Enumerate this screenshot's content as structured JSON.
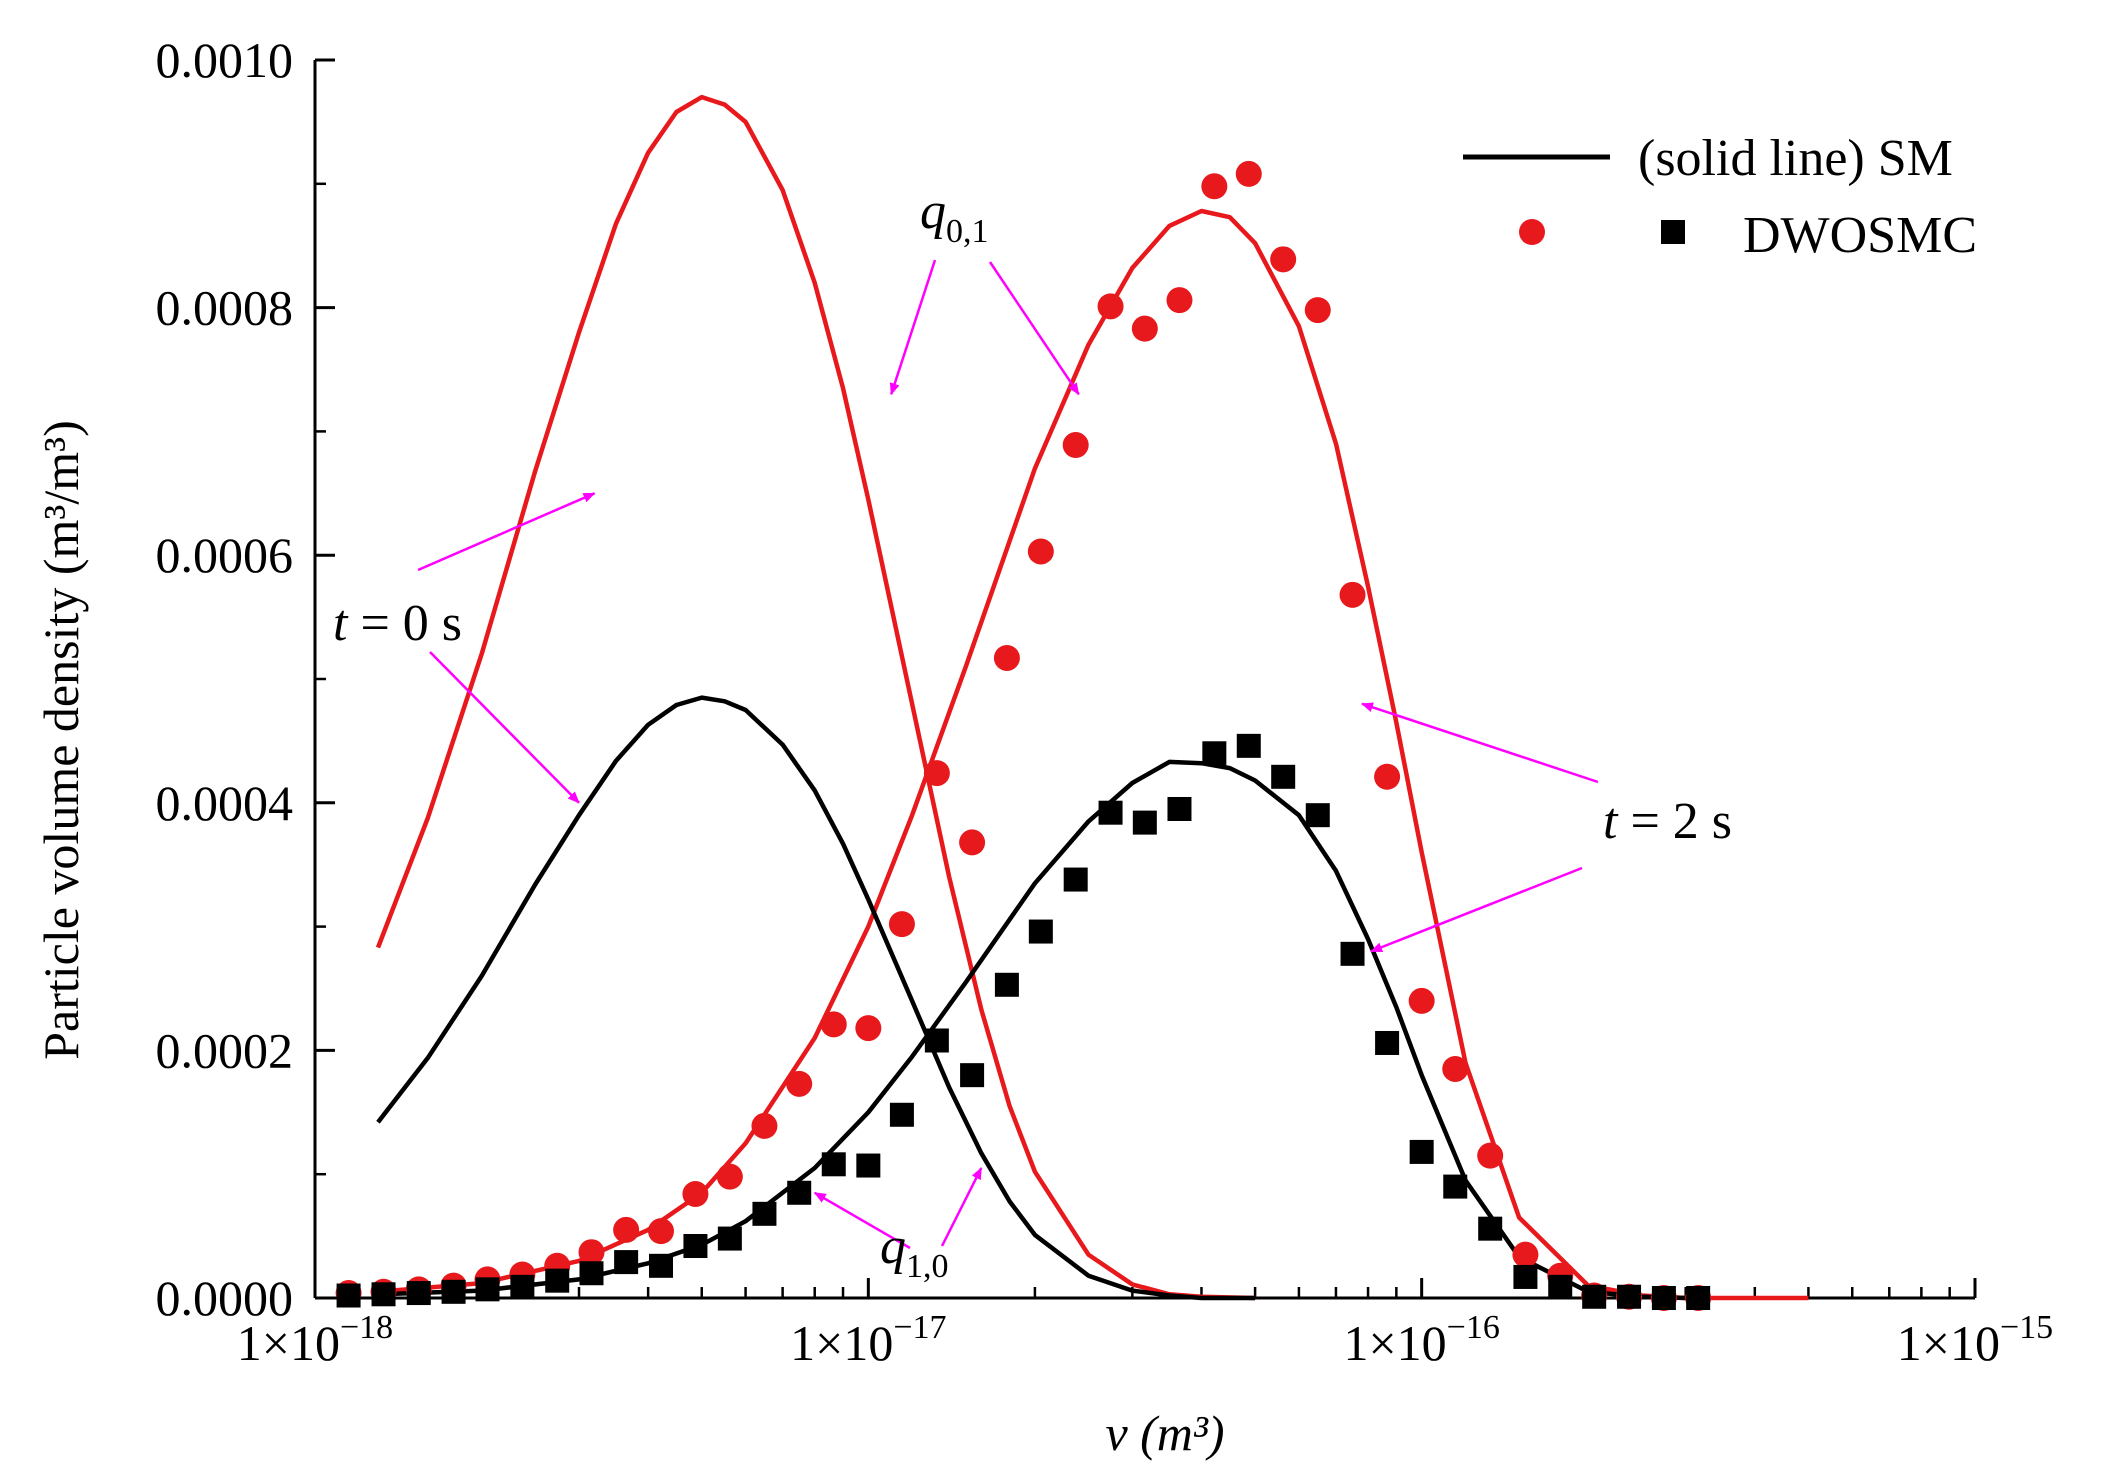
{
  "chart_data": {
    "type": "line",
    "x_scale": "log",
    "xlim": [
      1e-18,
      1e-15
    ],
    "ylim": [
      0,
      0.001
    ],
    "ylabel": "Particle volume density (m³/m³)",
    "xlabel": "v (m³)",
    "x_ticks": [
      1e-18,
      1e-17,
      1e-16,
      1e-15
    ],
    "x_tick_labels": [
      {
        "mantissa": "1×10",
        "exponent": "−18"
      },
      {
        "mantissa": "1×10",
        "exponent": "−17"
      },
      {
        "mantissa": "1×10",
        "exponent": "−16"
      },
      {
        "mantissa": "1×10",
        "exponent": "−15"
      }
    ],
    "y_ticks": [
      0,
      0.0002,
      0.0004,
      0.0006,
      0.0008,
      0.001
    ],
    "y_tick_labels": [
      "0.0000",
      "0.0002",
      "0.0004",
      "0.0006",
      "0.0008",
      "0.0010"
    ],
    "series": [
      {
        "name": "q0,1 t=0 s (SM)",
        "kind": "line",
        "color": "#e8191c",
        "x": [
          1.3e-18,
          1.6e-18,
          2e-18,
          2.5e-18,
          3e-18,
          3.5e-18,
          4e-18,
          4.5e-18,
          5e-18,
          5.5e-18,
          6e-18,
          7e-18,
          8e-18,
          9e-18,
          1e-17,
          1.2e-17,
          1.4e-17,
          1.6e-17,
          1.8e-17,
          2e-17,
          2.5e-17,
          3e-17,
          3.5e-17,
          4e-17,
          5e-17
        ],
        "y": [
          0.000283,
          0.000388,
          0.00052,
          0.000668,
          0.00078,
          0.000868,
          0.000925,
          0.000958,
          0.00097,
          0.000964,
          0.00095,
          0.000895,
          0.00082,
          0.000735,
          0.000645,
          0.00048,
          0.00034,
          0.000233,
          0.000155,
          0.000102,
          3.5e-05,
          1.1e-05,
          3e-06,
          1e-06,
          0
        ]
      },
      {
        "name": "q0,1 t=2 s (SM)",
        "kind": "line",
        "color": "#e8191c",
        "x": [
          1.3e-18,
          2e-18,
          3e-18,
          4e-18,
          5e-18,
          6e-18,
          8e-18,
          1e-17,
          1.2e-17,
          1.5e-17,
          2e-17,
          2.5e-17,
          3e-17,
          3.5e-17,
          4e-17,
          4.5e-17,
          5e-17,
          6e-17,
          7e-17,
          8e-17,
          9e-17,
          1e-16,
          1.2e-16,
          1.5e-16,
          2e-16,
          2.5e-16,
          3e-16,
          5e-16
        ],
        "y": [
          5e-06,
          1.2e-05,
          3e-05,
          5.5e-05,
          8.5e-05,
          0.000125,
          0.00021,
          0.0003,
          0.00039,
          0.00051,
          0.00067,
          0.00077,
          0.000832,
          0.000866,
          0.000878,
          0.000873,
          0.000852,
          0.000785,
          0.00069,
          0.000575,
          0.000465,
          0.00036,
          0.00019,
          6.5e-05,
          1e-05,
          2e-06,
          0,
          0
        ]
      },
      {
        "name": "q1,0 t=0 s (SM)",
        "kind": "line",
        "color": "#000000",
        "x": [
          1.3e-18,
          1.6e-18,
          2e-18,
          2.5e-18,
          3e-18,
          3.5e-18,
          4e-18,
          4.5e-18,
          5e-18,
          5.5e-18,
          6e-18,
          7e-18,
          8e-18,
          9e-18,
          1e-17,
          1.2e-17,
          1.4e-17,
          1.6e-17,
          1.8e-17,
          2e-17,
          2.5e-17,
          3e-17,
          3.5e-17,
          4e-17,
          5e-17
        ],
        "y": [
          0.000142,
          0.000194,
          0.00026,
          0.000334,
          0.00039,
          0.000434,
          0.000463,
          0.000479,
          0.000485,
          0.000482,
          0.000475,
          0.000447,
          0.00041,
          0.000367,
          0.000322,
          0.00024,
          0.00017,
          0.000117,
          7.8e-05,
          5.1e-05,
          1.8e-05,
          6e-06,
          2e-06,
          0,
          0
        ]
      },
      {
        "name": "q1,0 t=2 s (SM)",
        "kind": "line",
        "color": "#000000",
        "x": [
          1.3e-18,
          2e-18,
          3e-18,
          4e-18,
          5e-18,
          6e-18,
          8e-18,
          1e-17,
          1.2e-17,
          1.5e-17,
          2e-17,
          2.5e-17,
          3e-17,
          3.5e-17,
          4e-17,
          4.5e-17,
          5e-17,
          6e-17,
          7e-17,
          8e-17,
          9e-17,
          1e-16,
          1.2e-16,
          1.5e-16,
          2e-16,
          2.5e-16,
          3e-16
        ],
        "y": [
          3e-06,
          6e-06,
          1.5e-05,
          2.8e-05,
          4.3e-05,
          6.2e-05,
          0.000105,
          0.00015,
          0.000195,
          0.000255,
          0.000335,
          0.000385,
          0.000416,
          0.000433,
          0.000432,
          0.000428,
          0.000418,
          0.00039,
          0.000345,
          0.00029,
          0.000235,
          0.00018,
          9.5e-05,
          3.3e-05,
          5e-06,
          1e-06,
          0
        ]
      },
      {
        "name": "DWOSMC q0,1",
        "kind": "marker",
        "marker": "circle",
        "color": "#e8191c",
        "x": [
          1.15e-18,
          1.33e-18,
          1.54e-18,
          1.78e-18,
          2.05e-18,
          2.37e-18,
          2.74e-18,
          3.16e-18,
          3.65e-18,
          4.22e-18,
          4.87e-18,
          5.62e-18,
          6.49e-18,
          7.5e-18,
          8.66e-18,
          1e-17,
          1.15e-17,
          1.33e-17,
          1.54e-17,
          1.78e-17,
          2.05e-17,
          2.37e-17,
          2.74e-17,
          3.16e-17,
          3.65e-17,
          4.22e-17,
          4.87e-17,
          5.62e-17,
          6.49e-17,
          7.5e-17,
          8.66e-17,
          1e-16,
          1.15e-16,
          1.33e-16,
          1.54e-16,
          1.78e-16,
          2.05e-16,
          2.37e-16,
          2.74e-16,
          3.16e-16
        ],
        "y": [
          4e-06,
          5e-06,
          7e-06,
          1e-05,
          1.5e-05,
          1.9e-05,
          2.6e-05,
          3.7e-05,
          5.5e-05,
          5.4e-05,
          8.4e-05,
          9.8e-05,
          0.000139,
          0.000173,
          0.000221,
          0.000218,
          0.000302,
          0.000424,
          0.000368,
          0.000517,
          0.000603,
          0.000689,
          0.000801,
          0.000783,
          0.000806,
          0.000898,
          0.000908,
          0.000839,
          0.000798,
          0.000568,
          0.000421,
          0.00024,
          0.000185,
          0.000115,
          3.5e-05,
          1.8e-05,
          2e-06,
          1e-06,
          0,
          0
        ]
      },
      {
        "name": "DWOSMC q1,0",
        "kind": "marker",
        "marker": "square",
        "color": "#000000",
        "x": [
          1.15e-18,
          1.33e-18,
          1.54e-18,
          1.78e-18,
          2.05e-18,
          2.37e-18,
          2.74e-18,
          3.16e-18,
          3.65e-18,
          4.22e-18,
          4.87e-18,
          5.62e-18,
          6.49e-18,
          7.5e-18,
          8.66e-18,
          1e-17,
          1.15e-17,
          1.33e-17,
          1.54e-17,
          1.78e-17,
          2.05e-17,
          2.37e-17,
          2.74e-17,
          3.16e-17,
          3.65e-17,
          4.22e-17,
          4.87e-17,
          5.62e-17,
          6.49e-17,
          7.5e-17,
          8.66e-17,
          1e-16,
          1.15e-16,
          1.33e-16,
          1.54e-16,
          1.78e-16,
          2.05e-16,
          2.37e-16,
          2.74e-16,
          3.16e-16
        ],
        "y": [
          2e-06,
          3e-06,
          4e-06,
          5e-06,
          7e-06,
          9e-06,
          1.4e-05,
          2e-05,
          2.9e-05,
          2.6e-05,
          4.2e-05,
          4.8e-05,
          6.8e-05,
          8.5e-05,
          0.000108,
          0.000107,
          0.000148,
          0.000208,
          0.00018,
          0.000253,
          0.000296,
          0.000338,
          0.000392,
          0.000384,
          0.000395,
          0.00044,
          0.000446,
          0.000421,
          0.00039,
          0.000278,
          0.000206,
          0.000118,
          9e-05,
          5.6e-05,
          1.7e-05,
          9e-06,
          1e-06,
          1e-06,
          0,
          0
        ]
      }
    ],
    "legend": {
      "position": "top-right",
      "line_label": "(solid line)  SM",
      "marker_label": "DWOSMC"
    },
    "annotations": {
      "t0_label": {
        "italic": "t",
        "rest": " = 0 s"
      },
      "t2_label": {
        "italic": "t",
        "rest": " = 2 s"
      },
      "q01_label": {
        "italic": "q",
        "sub": "0,1"
      },
      "q10_label": {
        "italic": "q",
        "sub": "1,0"
      },
      "arrow_color": "#ff00ff",
      "arrows": [
        {
          "label": "t0_label",
          "target": [
            3.2e-18,
            0.00065
          ]
        },
        {
          "label": "t0_label",
          "target": [
            3e-18,
            0.0004
          ]
        },
        {
          "label": "t2_label",
          "target": [
            7.8e-17,
            0.00048
          ]
        },
        {
          "label": "t2_label",
          "target": [
            8.1e-17,
            0.00028
          ]
        },
        {
          "label": "q01_label",
          "target": [
            1.1e-17,
            0.00073
          ]
        },
        {
          "label": "q01_label",
          "target": [
            2.4e-17,
            0.00073
          ]
        },
        {
          "label": "q10_label",
          "target": [
            8e-18,
            8.5e-05
          ]
        },
        {
          "label": "q10_label",
          "target": [
            1.6e-17,
            0.000105
          ]
        }
      ]
    }
  }
}
